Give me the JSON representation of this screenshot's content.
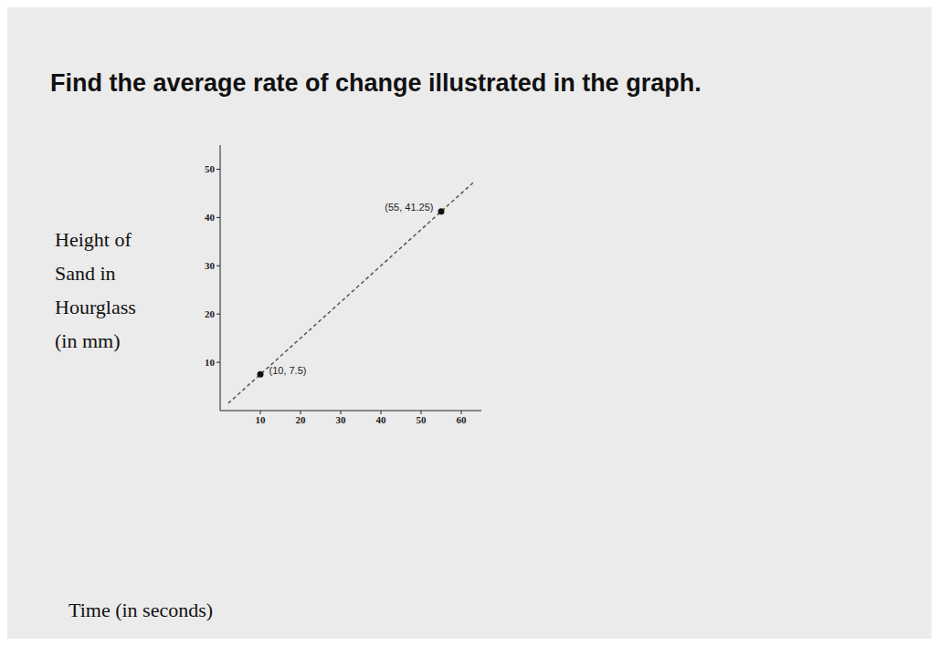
{
  "chart_data": {
    "type": "line",
    "title": "Find the average rate of change illustrated in the graph.",
    "ylabel": [
      "Height of",
      "Sand in",
      "Hourglass",
      "(in mm)"
    ],
    "xlabel": "Time (in seconds)",
    "x": [
      2,
      10,
      55,
      63
    ],
    "values": [
      1.5,
      7.5,
      41.25,
      47.25
    ],
    "color": "#555555",
    "line_style": "dashed",
    "points": [
      {
        "x": 10,
        "y": 7.5,
        "label": "(10, 7.5)"
      },
      {
        "x": 55,
        "y": 41.25,
        "label": "(55, 41.25)"
      }
    ],
    "marker": "circle",
    "xlim": [
      0,
      65
    ],
    "ylim": [
      0,
      55
    ],
    "xticks": [
      10,
      20,
      30,
      40,
      50,
      60
    ],
    "yticks": [
      10,
      20,
      30,
      40,
      50
    ],
    "grid": false
  }
}
